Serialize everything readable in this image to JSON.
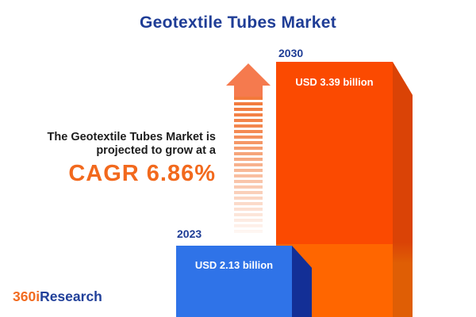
{
  "title": "Geotextile Tubes Market",
  "annotation": {
    "line1": "The Geotextile Tubes Market is",
    "line2": "projected to grow at a",
    "cagr": "CAGR 6.86%"
  },
  "logo": {
    "prefix": "360i",
    "suffix": "Research"
  },
  "icons": {
    "growth_arrow": "up-arrow-icon"
  },
  "colors": {
    "title_blue": "#1f3d96",
    "cagr_orange": "#f2691d",
    "text_dark": "#1d1d1d",
    "bar_2030_front_top": "#fb4a01",
    "bar_2030_front_bottom": "#ff6600",
    "bar_2030_side_top": "#da4306",
    "bar_2030_side_bottom": "#df5e05",
    "bar_2023_front": "#2f73e8",
    "bar_2023_side": "#132f96",
    "arrow_orange": "#f57a4e",
    "logo_orange": "#f26c21",
    "logo_blue": "#21409a",
    "background": "#ffffff"
  },
  "chart_data": {
    "type": "bar",
    "title": "Geotextile Tubes Market",
    "unit": "USD billion",
    "categories": [
      "2023",
      "2030"
    ],
    "values": [
      2.13,
      3.39
    ],
    "value_labels": [
      "USD 2.13 billion",
      "USD 3.39 billion"
    ],
    "cagr_percent": 6.86,
    "orientation": "vertical",
    "grid": false,
    "legend": "none",
    "bars": [
      {
        "year": "2023",
        "value": 2.13,
        "label": "USD 2.13 billion",
        "color": "#2f73e8"
      },
      {
        "year": "2030",
        "value": 3.39,
        "label": "USD 3.39 billion",
        "color": "#fb4a01"
      }
    ]
  }
}
